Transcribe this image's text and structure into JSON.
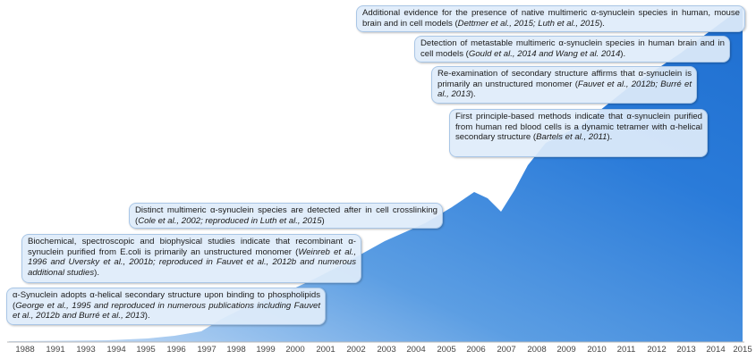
{
  "timeline": {
    "years": [
      "1988",
      "1991",
      "1993",
      "1994",
      "1995",
      "1996",
      "1997",
      "1998",
      "1999",
      "2000",
      "2001",
      "2002",
      "2003",
      "2004",
      "2005",
      "2006",
      "2007",
      "2008",
      "2009",
      "2010",
      "2011",
      "2012",
      "2013",
      "2014",
      "2015"
    ]
  },
  "callouts": [
    {
      "text": "α-Synuclein adopts α-helical secondary structure upon binding to phospholipids (",
      "cite": "George et al., 1995 and reproduced in numerous publications including Fauvet et al., 2012b and Burré et al., 2013",
      "tail": ")."
    },
    {
      "text": "Biochemical, spectroscopic and biophysical studies indicate that recombinant α-synuclein purified from E.coli is primarily an unstructured monomer (",
      "cite": "Weinreb et al., 1996 and Uversky et al., 2001b; reproduced in Fauvet et al., 2012b and numerous additional studies",
      "tail": ")."
    },
    {
      "text": "Distinct multimeric α-synuclein species are detected after in cell crosslinking (",
      "cite": "Cole et al., 2002; reproduced in Luth et al., 2015",
      "tail": ")"
    },
    {
      "text": "First principle-based methods indicate that α-synuclein purified from human red blood cells is a dynamic tetramer with α-helical secondary structure (",
      "cite": "Bartels et al., 2011",
      "tail": ")."
    },
    {
      "text": "Re-examination of secondary structure affirms that α-synuclein is primarily an unstructured monomer (",
      "cite": "Fauvet et al., 2012b; Burré et al., 2013",
      "tail": ")."
    },
    {
      "text": "Detection of metastable multimeric α-synuclein species in human brain and in cell models (",
      "cite": "Gould et al., 2014 and Wang et al. 2014",
      "tail": ")."
    },
    {
      "text": "Additional evidence for the presence of native multimeric α-synuclein species in human, mouse brain and in cell models (",
      "cite": "Dettmer et al., 2015; Luth et al., 2015",
      "tail": ")."
    }
  ]
}
